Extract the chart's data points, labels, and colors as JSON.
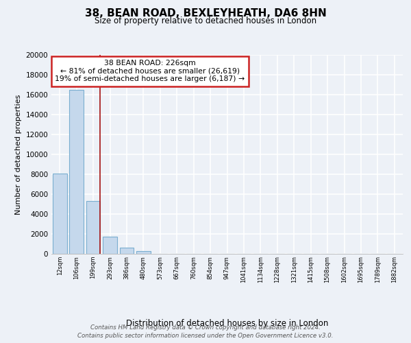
{
  "title": "38, BEAN ROAD, BEXLEYHEATH, DA6 8HN",
  "subtitle": "Size of property relative to detached houses in London",
  "xlabel": "Distribution of detached houses by size in London",
  "ylabel": "Number of detached properties",
  "categories": [
    "12sqm",
    "106sqm",
    "199sqm",
    "293sqm",
    "386sqm",
    "480sqm",
    "573sqm",
    "667sqm",
    "760sqm",
    "854sqm",
    "947sqm",
    "1041sqm",
    "1134sqm",
    "1228sqm",
    "1321sqm",
    "1415sqm",
    "1508sqm",
    "1602sqm",
    "1695sqm",
    "1789sqm",
    "1882sqm"
  ],
  "bar_values": [
    8100,
    16500,
    5300,
    1750,
    600,
    300,
    0,
    0,
    0,
    0,
    0,
    0,
    0,
    0,
    0,
    0,
    0,
    0,
    0,
    0,
    0
  ],
  "bar_color": "#c5d8ec",
  "bar_edge_color": "#7aaed0",
  "property_line_color": "#aa2222",
  "annotation_title": "38 BEAN ROAD: 226sqm",
  "annotation_line1": "← 81% of detached houses are smaller (26,619)",
  "annotation_line2": "19% of semi-detached houses are larger (6,187) →",
  "annotation_box_color": "white",
  "annotation_box_edge": "#cc2222",
  "ylim": [
    0,
    20000
  ],
  "yticks": [
    0,
    2000,
    4000,
    6000,
    8000,
    10000,
    12000,
    14000,
    16000,
    18000,
    20000
  ],
  "footer_line1": "Contains HM Land Registry data © Crown copyright and database right 2024.",
  "footer_line2": "Contains public sector information licensed under the Open Government Licence v3.0.",
  "bg_color": "#edf1f7",
  "plot_bg_color": "#edf1f7",
  "grid_color": "white"
}
